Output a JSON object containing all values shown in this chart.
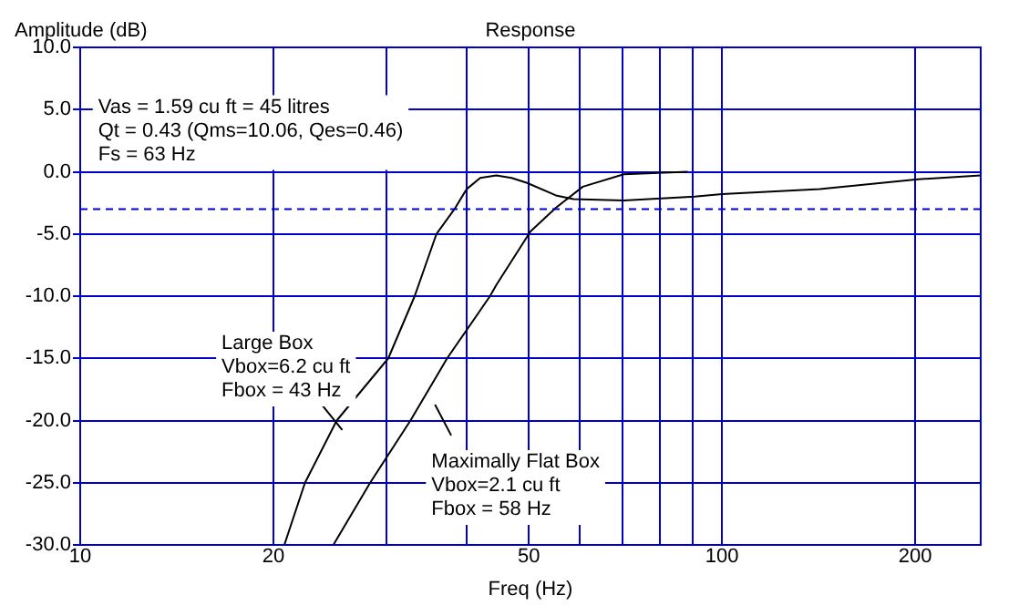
{
  "chart_data": {
    "type": "line",
    "title": "Response",
    "xlabel": "Freq (Hz)",
    "ylabel": "Amplitude (dB)",
    "log": "x",
    "grid": true,
    "legend": false,
    "marker": "none",
    "line_style": "solid",
    "xlim": [
      10,
      253
    ],
    "ylim": [
      -30,
      10
    ],
    "xticks": [
      10,
      20,
      {
        "value": 30,
        "label": null
      },
      {
        "value": 40,
        "label": null
      },
      50,
      {
        "value": 60,
        "label": null
      },
      {
        "value": 70,
        "label": null
      },
      {
        "value": 80,
        "label": null
      },
      {
        "value": 90,
        "label": null
      },
      100,
      200
    ],
    "yticks": [
      {
        "value": -30,
        "label": "-30.0"
      },
      {
        "value": -25,
        "label": "-25.0"
      },
      {
        "value": -20,
        "label": "-20.0"
      },
      {
        "value": -15,
        "label": "-15.0"
      },
      {
        "value": -10,
        "label": "-10.0"
      },
      {
        "value": -5,
        "label": "-5.0"
      },
      {
        "value": 0,
        "label": "0.0"
      },
      {
        "value": 5,
        "label": "5.0"
      },
      {
        "value": 10,
        "label": "10.0"
      }
    ],
    "ref_lines": [
      {
        "axis": "y",
        "value": -3,
        "color": "#0000cc",
        "line_style": "dashed"
      }
    ],
    "series": [
      {
        "color": "#000000",
        "x": [
          20.8,
          22.4,
          25.1,
          30.2,
          33.2,
          35.9,
          38.3,
          40,
          42,
          44.5,
          47,
          49.7,
          55.1,
          58.7,
          70.3,
          90.6,
          100,
          142,
          202,
          253
        ],
        "values": [
          -30,
          -25,
          -20,
          -15,
          -10,
          -5,
          -3,
          -1.4,
          -0.5,
          -0.3,
          -0.5,
          -0.9,
          -1.9,
          -2.2,
          -2.3,
          -2.0,
          -1.8,
          -1.4,
          -0.6,
          -0.3
        ]
      },
      {
        "color": "#000000",
        "x": [
          24.8,
          28.3,
          32.7,
          37.3,
          43.5,
          44.5,
          50.3,
          55.1,
          60.7,
          70.3,
          88.4
        ],
        "values": [
          -30,
          -25,
          -20,
          -15,
          -10,
          -9.1,
          -4.8,
          -2.9,
          -1.2,
          -0.2,
          0
        ]
      }
    ],
    "annotations": [
      "Vas = 1.59 cu ft = 45 litres\nQt = 0.43 (Qms=10.06, Qes=0.46)\nFs = 63 Hz",
      "Large Box\nVbox=6.2 cu ft\nFbox = 43 Hz",
      "Maximally Flat Box\nVbox=2.1 cu ft\nFbox = 58 Hz"
    ]
  }
}
